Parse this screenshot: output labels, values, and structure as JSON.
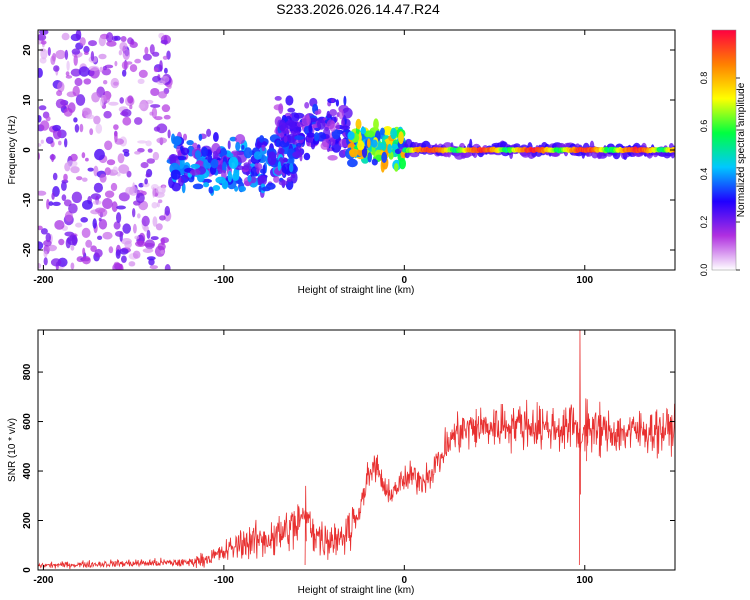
{
  "title": "S233.2026.026.14.47.R24",
  "chart_data": [
    {
      "type": "heatmap",
      "xlabel": "Height of straight line (km)",
      "ylabel": "Frequency (Hz)",
      "xlim": [
        -203,
        150
      ],
      "ylim": [
        -24,
        24
      ],
      "xticks": [
        -200,
        -100,
        0,
        100
      ],
      "xtick_labels": [
        "-200",
        "-100",
        "0",
        "100"
      ],
      "yticks": [
        -20,
        -10,
        0,
        10,
        20
      ],
      "ytick_labels": [
        "-20",
        "-10",
        "0",
        "10",
        "20"
      ],
      "colorbar": {
        "label": "Normalized spectral amplitude",
        "range": [
          0,
          1
        ],
        "ticks": [
          0,
          0.2,
          0.4,
          0.6,
          0.8
        ],
        "tick_labels": [
          "0.0",
          "0.2",
          "0.4",
          "0.6",
          "0.8"
        ],
        "colors": [
          "#ffffff",
          "#b030e0",
          "#2000ff",
          "#00c8ff",
          "#00ff40",
          "#ffff00",
          "#ff8000",
          "#ff0040"
        ]
      },
      "features": [
        {
          "x_range": [
            -203,
            -130
          ],
          "freq_range": [
            -24,
            24
          ],
          "amplitude": 0.15,
          "description": "scattered noise"
        },
        {
          "x_range": [
            -130,
            -60
          ],
          "freq_center": -3,
          "amplitude": 0.25
        },
        {
          "x_range": [
            -70,
            -30
          ],
          "freq_center": 4,
          "amplitude": 0.2
        },
        {
          "x_range": [
            -30,
            0
          ],
          "freq_center": 1,
          "amplitude": 0.5
        },
        {
          "x_range": [
            0,
            150
          ],
          "freq_center": 0,
          "amplitude": 0.85
        }
      ]
    },
    {
      "type": "line",
      "xlabel": "Height of straight line (km)",
      "ylabel": "SNR (10 * v/v)",
      "xlim": [
        -203,
        150
      ],
      "ylim": [
        0,
        970
      ],
      "xticks": [
        -200,
        -100,
        0,
        100
      ],
      "xtick_labels": [
        "-200",
        "-100",
        "0",
        "100"
      ],
      "yticks": [
        0,
        200,
        400,
        600,
        800
      ],
      "ytick_labels": [
        "0",
        "200",
        "400",
        "600",
        "800"
      ],
      "color": "#e83030",
      "series": [
        {
          "name": "SNR",
          "x": [
            -203,
            -180,
            -160,
            -140,
            -120,
            -110,
            -100,
            -90,
            -80,
            -70,
            -60,
            -55,
            -50,
            -45,
            -40,
            -35,
            -30,
            -25,
            -20,
            -15,
            -10,
            -5,
            0,
            5,
            10,
            15,
            20,
            25,
            30,
            40,
            50,
            60,
            70,
            80,
            90,
            95,
            97,
            100,
            105,
            110,
            120,
            130,
            140,
            150
          ],
          "y": [
            18,
            22,
            26,
            28,
            30,
            45,
            70,
            110,
            120,
            140,
            180,
            230,
            160,
            120,
            130,
            140,
            160,
            240,
            380,
            420,
            300,
            330,
            360,
            380,
            360,
            400,
            450,
            520,
            560,
            575,
            580,
            590,
            585,
            575,
            570,
            600,
            500,
            580,
            560,
            560,
            555,
            560,
            565,
            570
          ]
        }
      ],
      "spikes": [
        {
          "x": 97,
          "y_min": 20,
          "y_max": 970
        },
        {
          "x": 101,
          "y_min": 440,
          "y_max": 690
        },
        {
          "x": 108,
          "y_min": 460,
          "y_max": 680
        },
        {
          "x": -55,
          "y_min": 20,
          "y_max": 340
        }
      ]
    }
  ]
}
